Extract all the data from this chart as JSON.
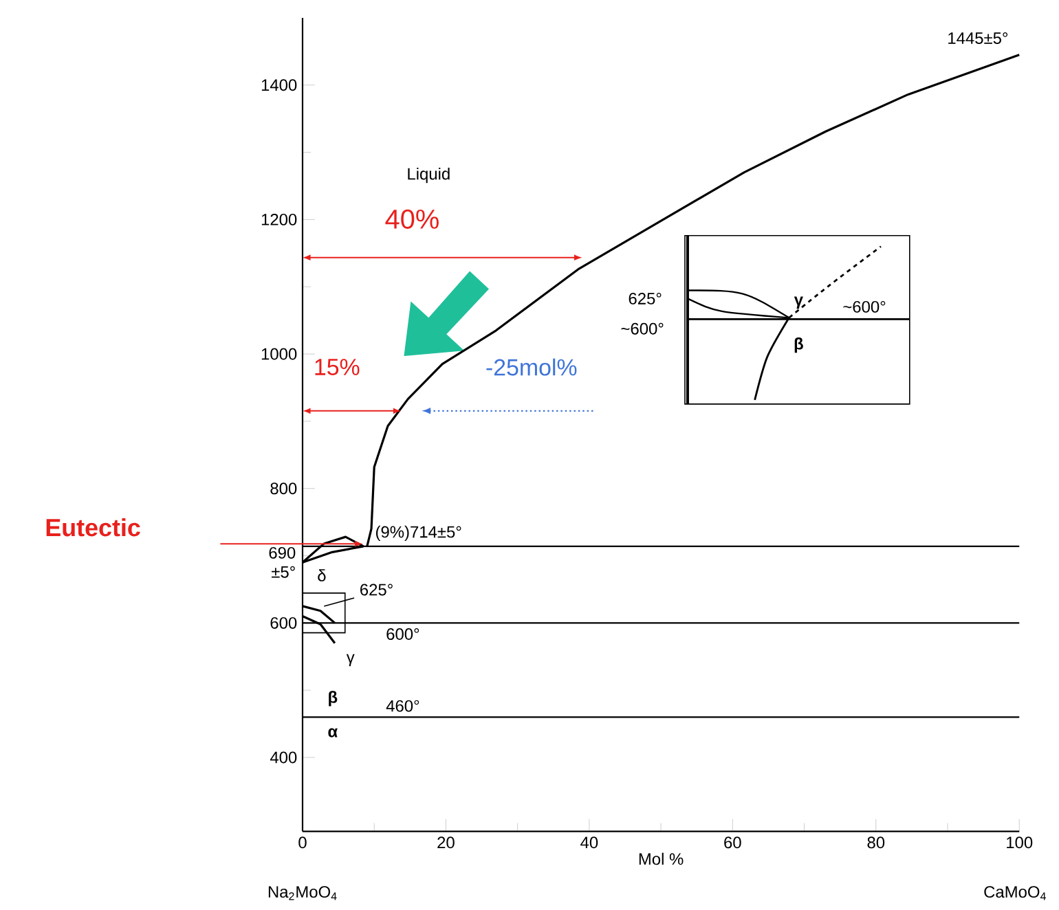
{
  "chart_data": {
    "type": "line",
    "xlabel": "Mol %",
    "xlim": [
      0,
      100
    ],
    "ylim": [
      290,
      1500
    ],
    "xticks": [
      0,
      20,
      40,
      60,
      80,
      100
    ],
    "yticks": [
      400,
      600,
      800,
      1000,
      1200,
      1400
    ],
    "marker": "none",
    "series": [
      {
        "color": "#000000",
        "line_style": "solid",
        "x": [
          9,
          9.6,
          10,
          11.9,
          14.7,
          19.5,
          27,
          38.6,
          50,
          61.6,
          73,
          84.5,
          100
        ],
        "values": [
          714,
          740,
          832,
          893,
          933,
          985,
          1035,
          1127,
          1198,
          1270,
          1331,
          1386,
          1445
        ]
      },
      {
        "color": "#000000",
        "line_style": "solid",
        "x": [
          0,
          3,
          6,
          8.5
        ],
        "values": [
          690,
          718,
          728,
          714
        ]
      },
      {
        "color": "#000000",
        "line_style": "solid",
        "x": [
          0,
          4,
          8.5
        ],
        "values": [
          690,
          705,
          714
        ]
      },
      {
        "color": "#000000",
        "line_style": "solid",
        "x": [
          0,
          2.5,
          4.5
        ],
        "values": [
          625,
          618,
          600
        ]
      },
      {
        "color": "#000000",
        "line_style": "solid",
        "x": [
          0,
          2.5,
          4.5
        ],
        "values": [
          610,
          598,
          570
        ]
      }
    ],
    "ref_lines": [
      {
        "axis": "y",
        "value": 714
      },
      {
        "axis": "y",
        "value": 600,
        "label": "600°"
      },
      {
        "axis": "y",
        "value": 460,
        "label": "460°"
      }
    ],
    "annotations": [
      {
        "text": "1445±5°",
        "x": 100,
        "y": 1445
      },
      {
        "text": "(9%)714±5°",
        "x": 9,
        "y": 714
      },
      {
        "text": "690 ±5°",
        "x": 0,
        "y": 690
      },
      {
        "text": "625°",
        "x": 3,
        "y": 625
      },
      "Liquid",
      "δ",
      "γ",
      "β",
      "α",
      "40%",
      "15%",
      "-25mol%",
      "Eutectic",
      "Na$_{2}$MoO$_{4}$",
      "CaMoO$_{4}$",
      "625°",
      "~600°",
      "γ",
      "~600°",
      "β"
    ]
  }
}
